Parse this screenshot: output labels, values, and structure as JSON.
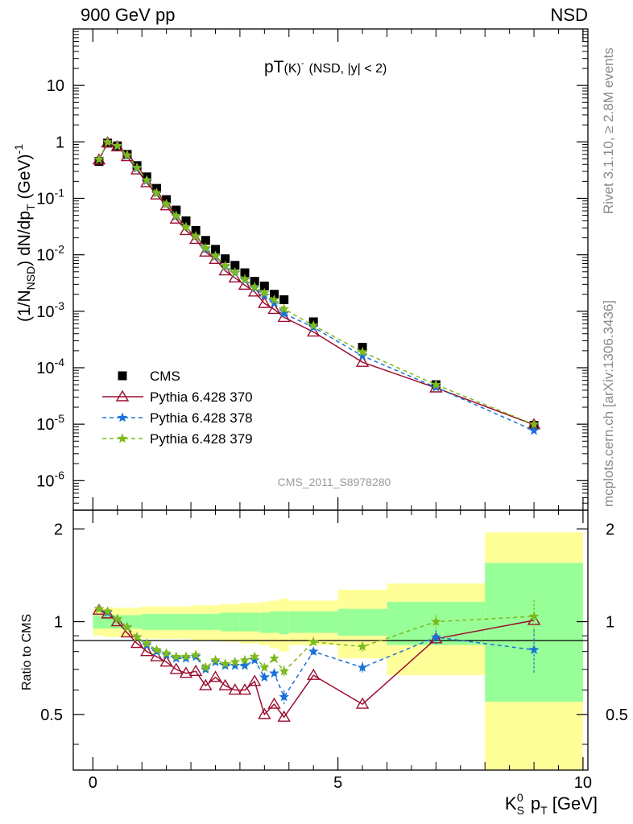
{
  "header": {
    "left": "900 GeV pp",
    "right": "NSD",
    "title_main": "pT",
    "title_particle": "(K)",
    "title_sup": "-",
    "title_cuts": "(NSD, |y| < 2)"
  },
  "side_labels": {
    "rivet": "Rivet 3.1.10, ≥ 2.8M events",
    "mcplots": "mcplots.cern.ch [arXiv:1306.3436]"
  },
  "watermark": "CMS_2011_S8978280",
  "axes": {
    "ylabel_main": "(1/N_NSD) dN/dp_T (GeV)^-1",
    "ylabel_ratio": "Ratio to CMS",
    "xlabel": "K_S^0 p_T [GeV]"
  },
  "legend": [
    {
      "name": "CMS",
      "color": "#000000",
      "marker": "square",
      "dash": "none"
    },
    {
      "name": "Pythia 6.428 370",
      "color": "#9b0d2f",
      "marker": "triangle",
      "dash": "solid"
    },
    {
      "name": "Pythia 6.428 378",
      "color": "#1a73d9",
      "marker": "star",
      "dash": "dashed"
    },
    {
      "name": "Pythia 6.428 379",
      "color": "#7dba1c",
      "marker": "star",
      "dash": "dashed"
    }
  ],
  "chart_data": {
    "type": "scatter",
    "x": [
      0.125,
      0.3,
      0.5,
      0.7,
      0.9,
      1.1,
      1.3,
      1.5,
      1.7,
      1.9,
      2.1,
      2.3,
      2.5,
      2.7,
      2.9,
      3.1,
      3.3,
      3.5,
      3.7,
      3.9,
      4.5,
      5.5,
      7.0,
      9.0
    ],
    "xlim": [
      -0.4,
      10.1
    ],
    "ylim_main": [
      3e-07,
      100
    ],
    "ylim_ratio": [
      0.33,
      2.3
    ],
    "log_y_main": true,
    "x_ticks": [
      0,
      5,
      10
    ],
    "y_ticks_main": [
      1e-06,
      1e-05,
      0.0001,
      0.001,
      0.01,
      0.1,
      1,
      10
    ],
    "y_ticks_main_labels": [
      "10^-6",
      "10^-5",
      "10^-4",
      "10^-3",
      "10^-2",
      "10^-1",
      "1",
      "10"
    ],
    "y_ticks_ratio": [
      0.5,
      1,
      2
    ],
    "series": [
      {
        "name": "CMS",
        "values": [
          0.45,
          0.95,
          0.85,
          0.6,
          0.38,
          0.24,
          0.15,
          0.095,
          0.062,
          0.04,
          0.027,
          0.018,
          0.0125,
          0.0085,
          0.0065,
          0.0048,
          0.0034,
          0.0028,
          0.002,
          0.0016,
          0.00065,
          0.00023,
          5e-05,
          9.5e-06
        ]
      },
      {
        "name": "Pythia 6.428 370",
        "values": [
          0.48,
          0.96,
          0.82,
          0.55,
          0.32,
          0.19,
          0.115,
          0.074,
          0.043,
          0.027,
          0.0188,
          0.0112,
          0.0083,
          0.0052,
          0.0039,
          0.0029,
          0.0022,
          0.00138,
          0.00108,
          0.00078,
          0.00043,
          0.000125,
          4.4e-05,
          9.8e-06
        ]
      },
      {
        "name": "Pythia 6.428 378",
        "values": [
          0.49,
          0.99,
          0.84,
          0.57,
          0.34,
          0.205,
          0.123,
          0.078,
          0.048,
          0.031,
          0.0212,
          0.0127,
          0.0094,
          0.0062,
          0.0048,
          0.0036,
          0.0026,
          0.0019,
          0.0014,
          0.00091,
          0.00052,
          0.000162,
          4.5e-05,
          7.7e-06
        ]
      },
      {
        "name": "Pythia 6.428 379",
        "values": [
          0.49,
          0.99,
          0.85,
          0.58,
          0.35,
          0.21,
          0.125,
          0.079,
          0.049,
          0.031,
          0.0213,
          0.0132,
          0.0096,
          0.0064,
          0.0049,
          0.0037,
          0.0027,
          0.0021,
          0.0016,
          0.0011,
          0.00056,
          0.00019,
          5e-05,
          9.9e-06
        ]
      }
    ],
    "ratio_series": [
      {
        "name": "Pythia 6.428 370",
        "values": [
          1.09,
          1.06,
          1.0,
          0.92,
          0.85,
          0.8,
          0.77,
          0.74,
          0.7,
          0.68,
          0.69,
          0.62,
          0.66,
          0.62,
          0.6,
          0.6,
          0.64,
          0.5,
          0.54,
          0.49,
          0.67,
          0.54,
          0.88,
          1.01
        ]
      },
      {
        "name": "Pythia 6.428 378",
        "values": [
          1.1,
          1.07,
          1.02,
          0.96,
          0.89,
          0.84,
          0.8,
          0.78,
          0.76,
          0.76,
          0.77,
          0.7,
          0.74,
          0.72,
          0.72,
          0.72,
          0.75,
          0.66,
          0.68,
          0.57,
          0.8,
          0.71,
          0.89,
          0.81
        ]
      },
      {
        "name": "Pythia 6.428 379",
        "values": [
          1.1,
          1.08,
          1.02,
          0.96,
          0.89,
          0.85,
          0.81,
          0.79,
          0.77,
          0.77,
          0.78,
          0.71,
          0.75,
          0.73,
          0.74,
          0.75,
          0.77,
          0.71,
          0.76,
          0.69,
          0.86,
          0.83,
          1.0,
          1.04
        ]
      }
    ],
    "ratio_err_up": [
      {
        "name": "Pythia 6.428 378",
        "values": [
          0,
          0,
          0,
          0,
          0,
          0,
          0,
          0,
          0,
          0,
          0,
          0,
          0,
          0,
          0,
          0,
          0,
          0.02,
          0.02,
          0.03,
          0.02,
          0.03,
          0.05,
          0.13
        ]
      },
      {
        "name": "Pythia 6.428 379",
        "values": [
          0,
          0,
          0,
          0,
          0,
          0,
          0,
          0,
          0,
          0,
          0,
          0,
          0,
          0,
          0,
          0,
          0,
          0.02,
          0.02,
          0.03,
          0.02,
          0.03,
          0.05,
          0.14
        ]
      }
    ],
    "uncertainty_bands": [
      {
        "x0": 0.0,
        "x1": 0.25,
        "inner": [
          0.95,
          1.05
        ],
        "outer": [
          0.9,
          1.1
        ]
      },
      {
        "x0": 0.25,
        "x1": 1.0,
        "inner": [
          0.95,
          1.05
        ],
        "outer": [
          0.89,
          1.11
        ]
      },
      {
        "x0": 1.0,
        "x1": 2.0,
        "inner": [
          0.94,
          1.06
        ],
        "outer": [
          0.88,
          1.12
        ]
      },
      {
        "x0": 2.0,
        "x1": 2.6,
        "inner": [
          0.94,
          1.06
        ],
        "outer": [
          0.87,
          1.13
        ]
      },
      {
        "x0": 2.6,
        "x1": 3.0,
        "inner": [
          0.93,
          1.07
        ],
        "outer": [
          0.86,
          1.14
        ]
      },
      {
        "x0": 3.0,
        "x1": 3.4,
        "inner": [
          0.93,
          1.07
        ],
        "outer": [
          0.85,
          1.15
        ]
      },
      {
        "x0": 3.4,
        "x1": 3.6,
        "inner": [
          0.92,
          1.07
        ],
        "outer": [
          0.84,
          1.16
        ]
      },
      {
        "x0": 3.6,
        "x1": 3.8,
        "inner": [
          0.92,
          1.08
        ],
        "outer": [
          0.82,
          1.17
        ]
      },
      {
        "x0": 3.8,
        "x1": 4.0,
        "inner": [
          0.91,
          1.08
        ],
        "outer": [
          0.8,
          1.19
        ]
      },
      {
        "x0": 4.0,
        "x1": 5.0,
        "inner": [
          0.92,
          1.08
        ],
        "outer": [
          0.84,
          1.17
        ]
      },
      {
        "x0": 5.0,
        "x1": 6.0,
        "inner": [
          0.9,
          1.1
        ],
        "outer": [
          0.76,
          1.27
        ]
      },
      {
        "x0": 6.0,
        "x1": 8.0,
        "inner": [
          0.84,
          1.16
        ],
        "outer": [
          0.67,
          1.33
        ]
      },
      {
        "x0": 8.0,
        "x1": 10.0,
        "inner": [
          0.55,
          1.55
        ],
        "outer": [
          0.33,
          1.95
        ]
      }
    ],
    "band_colors": {
      "inner": "#98ff98",
      "outer": "#ffff99"
    }
  }
}
